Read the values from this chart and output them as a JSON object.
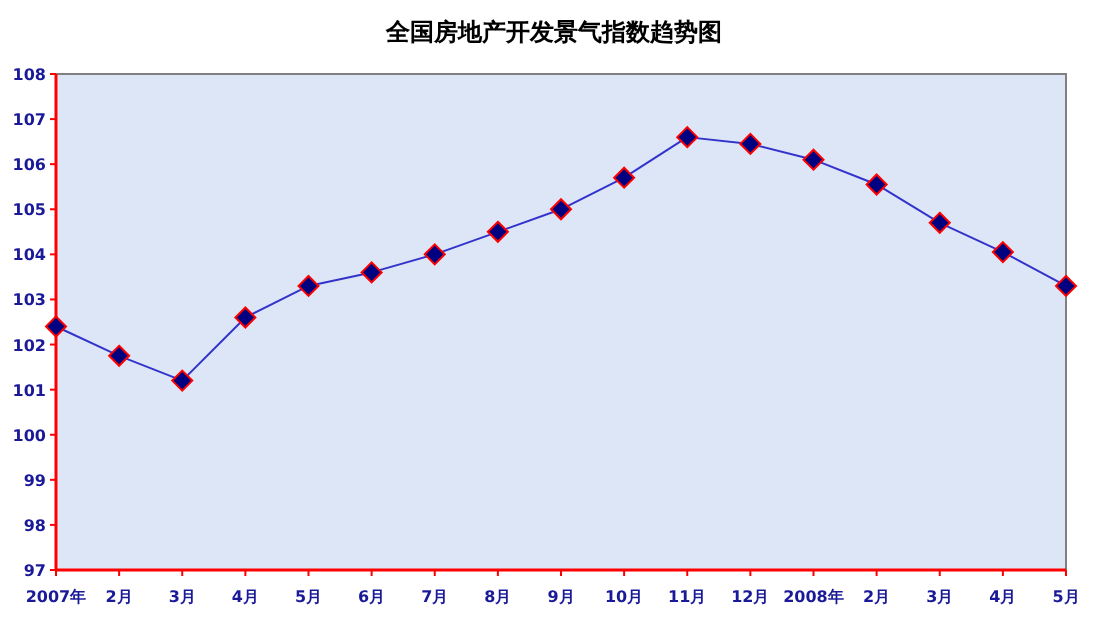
{
  "chart_data": {
    "type": "line",
    "title": "全国房地产开发景气指数趋势图",
    "categories": [
      "2007年",
      "2月",
      "3月",
      "4月",
      "5月",
      "6月",
      "7月",
      "8月",
      "9月",
      "10月",
      "11月",
      "12月",
      "2008年",
      "2月",
      "3月",
      "4月",
      "5月"
    ],
    "series": [
      {
        "color": "#3333cc",
        "values": [
          102.4,
          101.75,
          101.2,
          102.6,
          103.3,
          103.6,
          104.0,
          104.5,
          105.0,
          105.7,
          106.6,
          106.45,
          106.1,
          105.55,
          104.7,
          104.05,
          103.3
        ]
      }
    ],
    "ylim": [
      97,
      108
    ],
    "yticks": [
      97,
      98,
      99,
      100,
      101,
      102,
      103,
      104,
      105,
      106,
      107,
      108
    ],
    "marker": "diamond",
    "grid": false
  }
}
